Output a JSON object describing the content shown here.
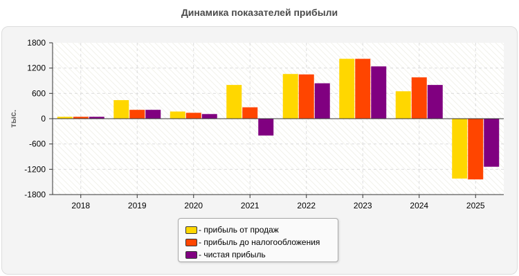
{
  "chart_data": {
    "type": "bar",
    "title": "Динамика показателей прибыли",
    "ylabel": "тыс.",
    "xlabel": "",
    "ylim": [
      -1800,
      1800
    ],
    "yticks": [
      1800,
      1200,
      600,
      0,
      -600,
      -1200,
      -1800
    ],
    "categories": [
      "2018",
      "2019",
      "2020",
      "2021",
      "2022",
      "2023",
      "2024",
      "2025"
    ],
    "grid": true,
    "legend_position": "bottom-center",
    "series": [
      {
        "name": "- прибыль от продаж",
        "color": "#FFD700",
        "values": [
          45,
          440,
          170,
          800,
          1060,
          1420,
          650,
          -1420
        ]
      },
      {
        "name": "- прибыль до налогообложения",
        "color": "#FF4500",
        "values": [
          45,
          210,
          140,
          270,
          1050,
          1420,
          980,
          -1440
        ]
      },
      {
        "name": "- чистая прибыль",
        "color": "#800080",
        "values": [
          45,
          210,
          110,
          -400,
          840,
          1240,
          800,
          -1140
        ]
      }
    ]
  }
}
